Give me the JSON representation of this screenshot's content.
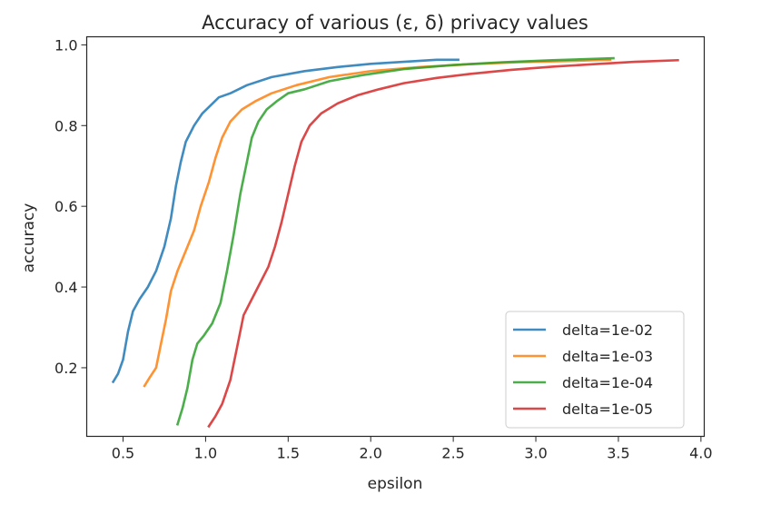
{
  "chart_data": {
    "type": "line",
    "title": "Accuracy of various (ε, δ) privacy values",
    "xlabel": "epsilon",
    "ylabel": "accuracy",
    "xlim": [
      0.28,
      4.02
    ],
    "ylim": [
      0.03,
      1.02
    ],
    "xticks": [
      0.5,
      1.0,
      1.5,
      2.0,
      2.5,
      3.0,
      3.5,
      4.0
    ],
    "xtick_labels": [
      "0.5",
      "1.0",
      "1.5",
      "2.0",
      "2.5",
      "3.0",
      "3.5",
      "4.0"
    ],
    "yticks": [
      0.2,
      0.4,
      0.6,
      0.8,
      1.0
    ],
    "ytick_labels": [
      "0.2",
      "0.4",
      "0.6",
      "0.8",
      "1.0"
    ],
    "grid": false,
    "legend_position": "lower-right",
    "series": [
      {
        "name": "delta=1e-02",
        "color": "#1f77b4",
        "points": [
          [
            0.44,
            0.165
          ],
          [
            0.47,
            0.185
          ],
          [
            0.5,
            0.22
          ],
          [
            0.53,
            0.29
          ],
          [
            0.56,
            0.34
          ],
          [
            0.6,
            0.37
          ],
          [
            0.65,
            0.4
          ],
          [
            0.7,
            0.44
          ],
          [
            0.75,
            0.5
          ],
          [
            0.79,
            0.57
          ],
          [
            0.82,
            0.65
          ],
          [
            0.85,
            0.71
          ],
          [
            0.88,
            0.76
          ],
          [
            0.93,
            0.8
          ],
          [
            0.98,
            0.83
          ],
          [
            1.03,
            0.85
          ],
          [
            1.08,
            0.87
          ],
          [
            1.15,
            0.88
          ],
          [
            1.25,
            0.9
          ],
          [
            1.4,
            0.92
          ],
          [
            1.6,
            0.935
          ],
          [
            1.8,
            0.945
          ],
          [
            2.0,
            0.953
          ],
          [
            2.2,
            0.958
          ],
          [
            2.4,
            0.963
          ],
          [
            2.53,
            0.963
          ]
        ]
      },
      {
        "name": "delta=1e-03",
        "color": "#ff7f0e",
        "points": [
          [
            0.63,
            0.155
          ],
          [
            0.66,
            0.175
          ],
          [
            0.7,
            0.2
          ],
          [
            0.73,
            0.26
          ],
          [
            0.76,
            0.32
          ],
          [
            0.79,
            0.39
          ],
          [
            0.83,
            0.44
          ],
          [
            0.88,
            0.49
          ],
          [
            0.93,
            0.54
          ],
          [
            0.97,
            0.6
          ],
          [
            1.02,
            0.66
          ],
          [
            1.06,
            0.72
          ],
          [
            1.1,
            0.77
          ],
          [
            1.15,
            0.81
          ],
          [
            1.22,
            0.84
          ],
          [
            1.3,
            0.86
          ],
          [
            1.4,
            0.88
          ],
          [
            1.55,
            0.9
          ],
          [
            1.75,
            0.92
          ],
          [
            2.0,
            0.935
          ],
          [
            2.3,
            0.945
          ],
          [
            2.6,
            0.952
          ],
          [
            2.9,
            0.957
          ],
          [
            3.2,
            0.96
          ],
          [
            3.45,
            0.963
          ]
        ]
      },
      {
        "name": "delta=1e-04",
        "color": "#2ca02c",
        "points": [
          [
            0.83,
            0.06
          ],
          [
            0.86,
            0.1
          ],
          [
            0.89,
            0.15
          ],
          [
            0.92,
            0.22
          ],
          [
            0.95,
            0.26
          ],
          [
            0.99,
            0.28
          ],
          [
            1.04,
            0.31
          ],
          [
            1.09,
            0.36
          ],
          [
            1.13,
            0.44
          ],
          [
            1.17,
            0.53
          ],
          [
            1.21,
            0.63
          ],
          [
            1.25,
            0.71
          ],
          [
            1.28,
            0.77
          ],
          [
            1.32,
            0.81
          ],
          [
            1.37,
            0.84
          ],
          [
            1.43,
            0.86
          ],
          [
            1.5,
            0.88
          ],
          [
            1.6,
            0.89
          ],
          [
            1.75,
            0.91
          ],
          [
            1.95,
            0.925
          ],
          [
            2.2,
            0.94
          ],
          [
            2.5,
            0.95
          ],
          [
            2.8,
            0.957
          ],
          [
            3.1,
            0.962
          ],
          [
            3.47,
            0.967
          ]
        ]
      },
      {
        "name": "delta=1e-05",
        "color": "#d62728",
        "points": [
          [
            1.02,
            0.055
          ],
          [
            1.06,
            0.08
          ],
          [
            1.1,
            0.11
          ],
          [
            1.15,
            0.17
          ],
          [
            1.19,
            0.25
          ],
          [
            1.23,
            0.33
          ],
          [
            1.28,
            0.37
          ],
          [
            1.33,
            0.41
          ],
          [
            1.38,
            0.45
          ],
          [
            1.42,
            0.5
          ],
          [
            1.46,
            0.56
          ],
          [
            1.5,
            0.63
          ],
          [
            1.54,
            0.7
          ],
          [
            1.58,
            0.76
          ],
          [
            1.63,
            0.8
          ],
          [
            1.7,
            0.83
          ],
          [
            1.8,
            0.855
          ],
          [
            1.92,
            0.875
          ],
          [
            2.05,
            0.89
          ],
          [
            2.2,
            0.905
          ],
          [
            2.4,
            0.918
          ],
          [
            2.6,
            0.928
          ],
          [
            2.85,
            0.938
          ],
          [
            3.1,
            0.946
          ],
          [
            3.35,
            0.952
          ],
          [
            3.6,
            0.958
          ],
          [
            3.86,
            0.962
          ]
        ]
      }
    ]
  }
}
